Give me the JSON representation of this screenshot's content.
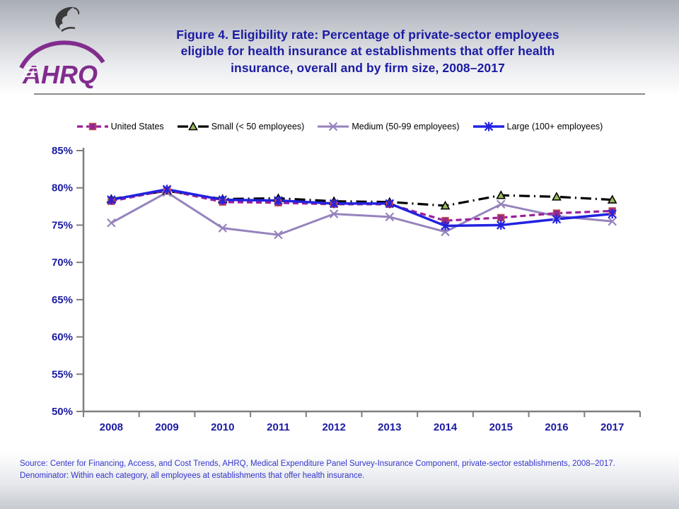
{
  "header": {
    "title_lines": [
      "Figure 4. Eligibility rate: Percentage of private-sector employees",
      "eligible for health insurance at establishments that offer health",
      "insurance, overall and by firm size, 2008–2017"
    ],
    "logo_text": "AHRQ"
  },
  "colors": {
    "title_text": "#1B1BA3",
    "axis_labels": "#1B1BA3",
    "source_text": "#3434CC",
    "axis_line": "#7F7F7F",
    "logo_purple": "#822C8E",
    "banner_gray": "#A9ADB5"
  },
  "chart_data": {
    "type": "line",
    "title": "Eligibility rate, overall and by firm size, 2008-2017",
    "categories": [
      "2008",
      "2009",
      "2010",
      "2011",
      "2012",
      "2013",
      "2014",
      "2015",
      "2016",
      "2017"
    ],
    "series": [
      {
        "name": "United States",
        "color": "#9B1F9B",
        "dash": "8 5",
        "width": 3.2,
        "marker": "square",
        "marker_fill": "#93278F",
        "marker_stroke": "#C0504D",
        "values": [
          78.2,
          79.7,
          78.1,
          78.0,
          77.8,
          77.8,
          75.6,
          76.0,
          76.6,
          76.9
        ]
      },
      {
        "name": "Small (< 50 employees)",
        "color": "#000000",
        "dash": "15 6 2 6",
        "width": 3.2,
        "marker": "triangle",
        "marker_fill": "#9BBB59",
        "marker_stroke": "#000000",
        "values": [
          78.5,
          79.6,
          78.5,
          78.6,
          78.2,
          78.1,
          77.6,
          79.0,
          78.8,
          78.4
        ]
      },
      {
        "name": "Medium (50-99 employees)",
        "color": "#9683BD",
        "dash": null,
        "width": 3,
        "marker": "x",
        "marker_fill": "#9683BD",
        "marker_stroke": "#9683BD",
        "values": [
          75.3,
          79.4,
          74.6,
          73.7,
          76.5,
          76.1,
          74.1,
          77.8,
          76.2,
          75.5
        ]
      },
      {
        "name": "Large (100+ employees)",
        "color": "#2222E0",
        "dash": null,
        "width": 3.5,
        "marker": "asterisk",
        "marker_fill": "#2222E0",
        "marker_stroke": "#2222E0",
        "values": [
          78.4,
          79.8,
          78.4,
          78.3,
          77.9,
          77.9,
          74.9,
          75.0,
          75.8,
          76.5
        ]
      }
    ],
    "ylim": [
      50,
      85
    ],
    "ytick_step": 5,
    "ylabel_suffix": "%",
    "xlabel": "",
    "ylabel": "",
    "grid": false,
    "legend_position": "top"
  },
  "footer": {
    "source_line1": "Source: Center for Financing, Access, and Cost Trends, AHRQ, Medical Expenditure Panel Survey-Insurance Component, private-sector establishments, 2008–2017.",
    "source_line2": "Denominator: Within each category, all employees at establishments that offer health insurance."
  }
}
